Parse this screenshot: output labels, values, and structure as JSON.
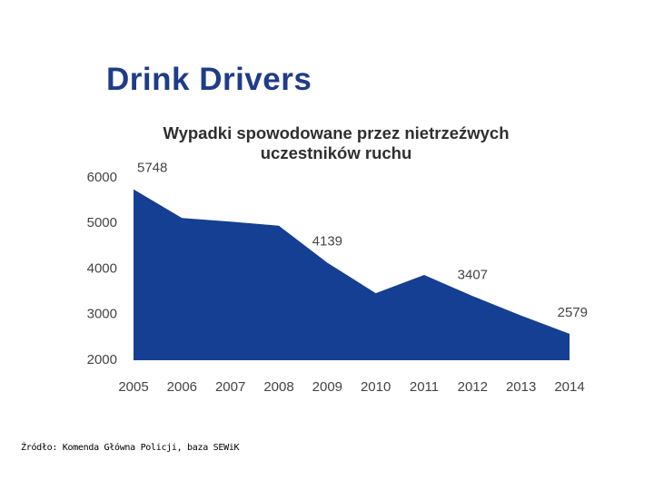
{
  "slide": {
    "title": "Drink Drivers",
    "source": "Źródło: Komenda Główna Policji, baza SEWiK"
  },
  "chart_data": {
    "type": "area",
    "title": "Wypadki spowodowane przez nietrzeźwych uczestników ruchu",
    "categories": [
      "2005",
      "2006",
      "2007",
      "2008",
      "2009",
      "2010",
      "2011",
      "2012",
      "2013",
      "2014"
    ],
    "values": [
      5748,
      5120,
      5040,
      4950,
      4139,
      3470,
      3870,
      3407,
      2980,
      2579
    ],
    "value_labels": [
      "5748",
      null,
      null,
      null,
      "4139",
      null,
      null,
      "3407",
      null,
      "2579"
    ],
    "color": "#153f92",
    "ylim": [
      2000,
      6000
    ],
    "yticks": [
      2000,
      3000,
      4000,
      5000,
      6000
    ],
    "grid": false
  }
}
